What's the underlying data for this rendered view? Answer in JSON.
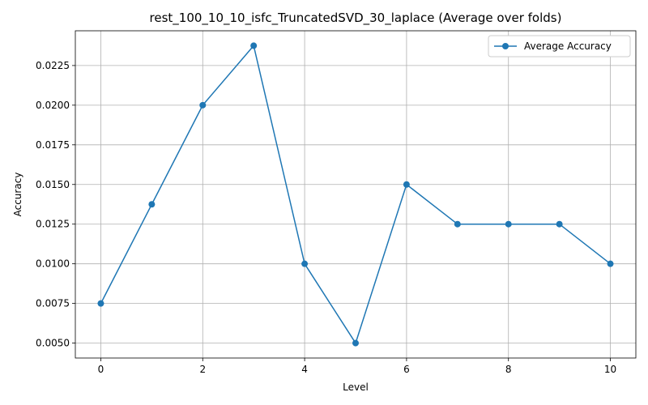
{
  "chart_data": {
    "type": "line",
    "title": "rest_100_10_10_isfc_TruncatedSVD_30_laplace (Average over folds)",
    "xlabel": "Level",
    "ylabel": "Accuracy",
    "x": [
      0,
      1,
      2,
      3,
      4,
      5,
      6,
      7,
      8,
      9,
      10
    ],
    "series": [
      {
        "name": "Average Accuracy",
        "color": "#1f77b4",
        "marker": "circle",
        "values": [
          0.0075,
          0.01375,
          0.02,
          0.02375,
          0.01,
          0.005,
          0.015,
          0.0125,
          0.0125,
          0.0125,
          0.01
        ]
      }
    ],
    "xlim": [
      -0.5,
      10.5
    ],
    "ylim": [
      0.00406,
      0.02469
    ],
    "xticks": [
      0,
      2,
      4,
      6,
      8,
      10
    ],
    "xtick_labels": [
      "0",
      "2",
      "4",
      "6",
      "8",
      "10"
    ],
    "yticks": [
      0.005,
      0.0075,
      0.01,
      0.0125,
      0.015,
      0.0175,
      0.02,
      0.0225
    ],
    "ytick_labels": [
      "0.0050",
      "0.0075",
      "0.0100",
      "0.0125",
      "0.0150",
      "0.0175",
      "0.0200",
      "0.0225"
    ],
    "grid": true,
    "legend_position": "top-right"
  }
}
